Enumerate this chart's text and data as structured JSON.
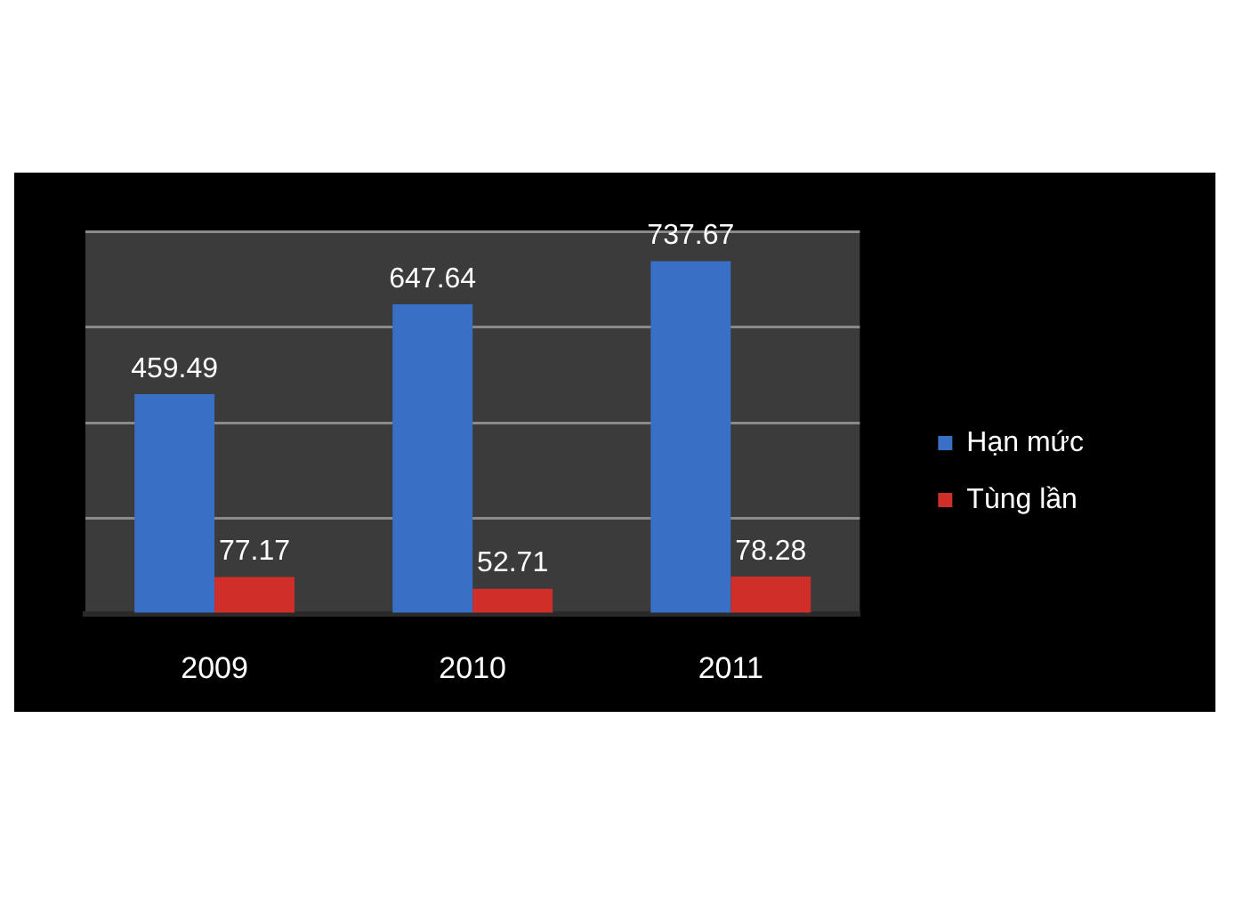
{
  "chart_data": {
    "type": "bar",
    "categories": [
      "2009",
      "2010",
      "2011"
    ],
    "series": [
      {
        "name": "Hạn mức",
        "color": "#3a6fc6",
        "values": [
          459.49,
          647.64,
          737.67
        ]
      },
      {
        "name": "Tùng lần",
        "color": "#cf2f28",
        "values": [
          77.17,
          52.71,
          78.28
        ]
      }
    ],
    "ylim": [
      0,
      800
    ],
    "yticks": [
      {
        "value": 0,
        "label": null
      },
      {
        "value": 200,
        "label": null
      },
      {
        "value": 400,
        "label": null
      },
      {
        "value": 600,
        "label": null
      },
      {
        "value": 800,
        "label": null
      }
    ],
    "grid": "y",
    "legend": "right",
    "data_labels": true,
    "tick_labels": "x"
  }
}
